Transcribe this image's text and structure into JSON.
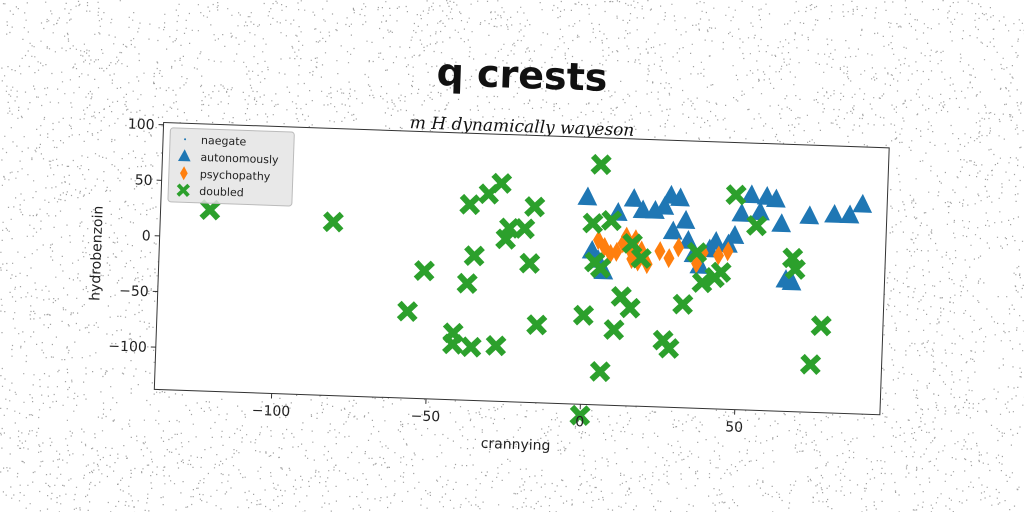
{
  "chart_data": {
    "type": "scatter",
    "title": "q crests",
    "subtitle": "m H dynamically wayeson",
    "xlabel": "crannying",
    "ylabel": "hydrobenzoin",
    "xlim": [
      -138,
      97
    ],
    "ylim": [
      -138,
      102
    ],
    "xticks": [
      -100,
      -50,
      0,
      50
    ],
    "yticks": [
      100,
      50,
      0,
      -50,
      -100
    ],
    "grid": false,
    "legend_placement": "top-left",
    "legend_entries": [
      "naegate",
      "autonomously",
      "psychopathy",
      "doubled"
    ],
    "series": [
      {
        "name": "naegate",
        "marker": "point",
        "color": "#1f77b4",
        "points": []
      },
      {
        "name": "autonomously",
        "marker": "triangle",
        "color": "#1f77b4",
        "points": [
          [
            0,
            48
          ],
          [
            2,
            0
          ],
          [
            6,
            -18
          ],
          [
            4,
            -8
          ],
          [
            10,
            35
          ],
          [
            15,
            48
          ],
          [
            18,
            38
          ],
          [
            22,
            38
          ],
          [
            25,
            42
          ],
          [
            27,
            52
          ],
          [
            30,
            50
          ],
          [
            32,
            30
          ],
          [
            28,
            20
          ],
          [
            33,
            12
          ],
          [
            35,
            0
          ],
          [
            37,
            -10
          ],
          [
            40,
            5
          ],
          [
            42,
            12
          ],
          [
            46,
            10
          ],
          [
            48,
            18
          ],
          [
            50,
            38
          ],
          [
            53,
            55
          ],
          [
            56,
            40
          ],
          [
            58,
            54
          ],
          [
            61,
            52
          ],
          [
            63,
            30
          ],
          [
            65,
            -20
          ],
          [
            67,
            -22
          ],
          [
            72,
            38
          ],
          [
            80,
            40
          ],
          [
            85,
            40
          ],
          [
            89,
            50
          ]
        ]
      },
      {
        "name": "psychopathy",
        "marker": "diamond",
        "color": "#ff7f0e",
        "points": [
          [
            4,
            10
          ],
          [
            6,
            4
          ],
          [
            8,
            -2
          ],
          [
            10,
            0
          ],
          [
            12,
            8
          ],
          [
            14,
            4
          ],
          [
            15,
            -6
          ],
          [
            16,
            12
          ],
          [
            13,
            14
          ],
          [
            17,
            -8
          ],
          [
            18,
            2
          ],
          [
            20,
            -10
          ],
          [
            24,
            2
          ],
          [
            27,
            -4
          ],
          [
            30,
            6
          ],
          [
            36,
            -8
          ],
          [
            38,
            2
          ],
          [
            43,
            0
          ],
          [
            46,
            4
          ]
        ]
      },
      {
        "name": "doubled",
        "marker": "x",
        "color": "#2ca02c",
        "points": [
          [
            -122,
            25
          ],
          [
            -82,
            18
          ],
          [
            -57,
            -60
          ],
          [
            -52,
            -23
          ],
          [
            -42,
            -78
          ],
          [
            -42,
            -88
          ],
          [
            -38,
            38
          ],
          [
            -38,
            -33
          ],
          [
            -36,
            -8
          ],
          [
            -36,
            -90
          ],
          [
            -32,
            48
          ],
          [
            -28,
            58
          ],
          [
            -28,
            -88
          ],
          [
            -26,
            8
          ],
          [
            -25,
            18
          ],
          [
            -20,
            18
          ],
          [
            -18,
            -13
          ],
          [
            -17,
            38
          ],
          [
            -15,
            -68
          ],
          [
            0,
            -58
          ],
          [
            0,
            -148
          ],
          [
            2,
            25
          ],
          [
            3,
            -10
          ],
          [
            4,
            78
          ],
          [
            5,
            -15
          ],
          [
            6,
            -108
          ],
          [
            8,
            28
          ],
          [
            10,
            -70
          ],
          [
            12,
            -40
          ],
          [
            15,
            8
          ],
          [
            15,
            -50
          ],
          [
            18,
            -5
          ],
          [
            26,
            -78
          ],
          [
            28,
            -85
          ],
          [
            32,
            -45
          ],
          [
            36,
            2
          ],
          [
            38,
            -25
          ],
          [
            42,
            -20
          ],
          [
            44,
            -15
          ],
          [
            48,
            55
          ],
          [
            55,
            28
          ],
          [
            67,
            0
          ],
          [
            68,
            -10
          ],
          [
            74,
            -95
          ],
          [
            77,
            -60
          ]
        ]
      }
    ]
  }
}
